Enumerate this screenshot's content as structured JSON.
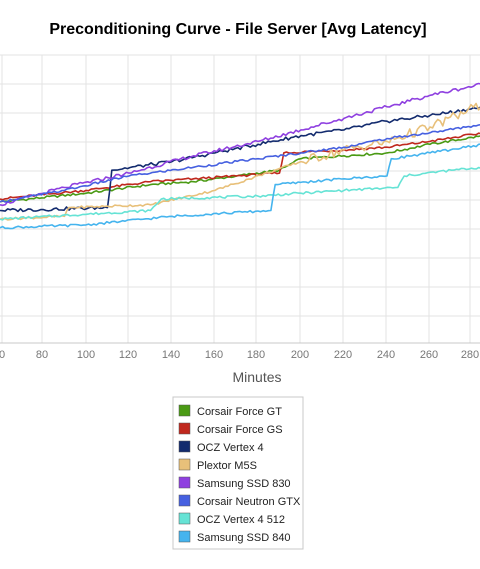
{
  "chart_data": {
    "type": "line",
    "title": "Preconditioning Curve - File Server [Avg Latency]",
    "xlabel": "Minutes",
    "ylabel": "",
    "x_ticks": [
      "0",
      "80",
      "100",
      "120",
      "140",
      "160",
      "180",
      "200",
      "220",
      "240",
      "260",
      "280"
    ],
    "xlim": [
      60,
      285
    ],
    "ylim": [
      0,
      10
    ],
    "grid": true,
    "legend_position": "bottom",
    "series": [
      {
        "name": "Corsair Force GT",
        "color": "#4a9a14",
        "points": [
          [
            60,
            4.9
          ],
          [
            100,
            5.2
          ],
          [
            130,
            5.5
          ],
          [
            150,
            5.6
          ],
          [
            170,
            5.8
          ],
          [
            190,
            6.0
          ],
          [
            200,
            6.4
          ],
          [
            220,
            6.5
          ],
          [
            240,
            6.6
          ],
          [
            260,
            6.9
          ],
          [
            285,
            7.2
          ]
        ]
      },
      {
        "name": "Corsair Force GS",
        "color": "#c0281e",
        "points": [
          [
            60,
            5.0
          ],
          [
            100,
            5.3
          ],
          [
            130,
            5.6
          ],
          [
            150,
            5.7
          ],
          [
            170,
            5.8
          ],
          [
            190,
            5.9
          ],
          [
            192,
            6.6
          ],
          [
            220,
            6.7
          ],
          [
            240,
            6.8
          ],
          [
            260,
            7.0
          ],
          [
            285,
            7.3
          ]
        ]
      },
      {
        "name": "OCZ Vertex 4",
        "color": "#132b6e",
        "points": [
          [
            60,
            4.6
          ],
          [
            110,
            4.7
          ],
          [
            112,
            6.0
          ],
          [
            140,
            6.3
          ],
          [
            160,
            6.6
          ],
          [
            180,
            6.9
          ],
          [
            200,
            7.2
          ],
          [
            220,
            7.4
          ],
          [
            240,
            7.7
          ],
          [
            260,
            7.9
          ],
          [
            285,
            8.2
          ]
        ]
      },
      {
        "name": "Plextor M5S",
        "color": "#e8c07a",
        "points": [
          [
            60,
            4.3
          ],
          [
            90,
            4.4
          ],
          [
            92,
            4.7
          ],
          [
            130,
            4.8
          ],
          [
            160,
            5.3
          ],
          [
            200,
            6.3
          ],
          [
            220,
            6.7
          ],
          [
            240,
            7.0
          ],
          [
            260,
            7.5
          ],
          [
            285,
            8.3
          ]
        ]
      },
      {
        "name": "Samsung SSD 830",
        "color": "#8f40e0",
        "points": [
          [
            60,
            4.8
          ],
          [
            90,
            5.4
          ],
          [
            120,
            5.9
          ],
          [
            150,
            6.5
          ],
          [
            180,
            7.0
          ],
          [
            200,
            7.4
          ],
          [
            220,
            7.8
          ],
          [
            240,
            8.2
          ],
          [
            260,
            8.6
          ],
          [
            285,
            9.0
          ]
        ]
      },
      {
        "name": "Corsair Neutron GTX",
        "color": "#4660e0",
        "points": [
          [
            60,
            4.9
          ],
          [
            90,
            5.3
          ],
          [
            120,
            5.8
          ],
          [
            150,
            6.1
          ],
          [
            180,
            6.4
          ],
          [
            200,
            6.6
          ],
          [
            220,
            6.8
          ],
          [
            240,
            7.1
          ],
          [
            260,
            7.3
          ],
          [
            285,
            7.6
          ]
        ]
      },
      {
        "name": "OCZ Vertex 4 512",
        "color": "#66e3d5",
        "points": [
          [
            60,
            4.3
          ],
          [
            130,
            4.6
          ],
          [
            135,
            5.0
          ],
          [
            180,
            5.1
          ],
          [
            200,
            5.2
          ],
          [
            220,
            5.3
          ],
          [
            245,
            5.4
          ],
          [
            248,
            5.8
          ],
          [
            270,
            6.0
          ],
          [
            285,
            6.1
          ]
        ]
      },
      {
        "name": "Samsung SSD 840",
        "color": "#45b4ee",
        "points": [
          [
            60,
            4.0
          ],
          [
            100,
            4.1
          ],
          [
            140,
            4.4
          ],
          [
            186,
            4.6
          ],
          [
            188,
            5.5
          ],
          [
            220,
            5.7
          ],
          [
            240,
            5.8
          ],
          [
            242,
            6.4
          ],
          [
            260,
            6.6
          ],
          [
            285,
            6.9
          ]
        ]
      }
    ]
  }
}
